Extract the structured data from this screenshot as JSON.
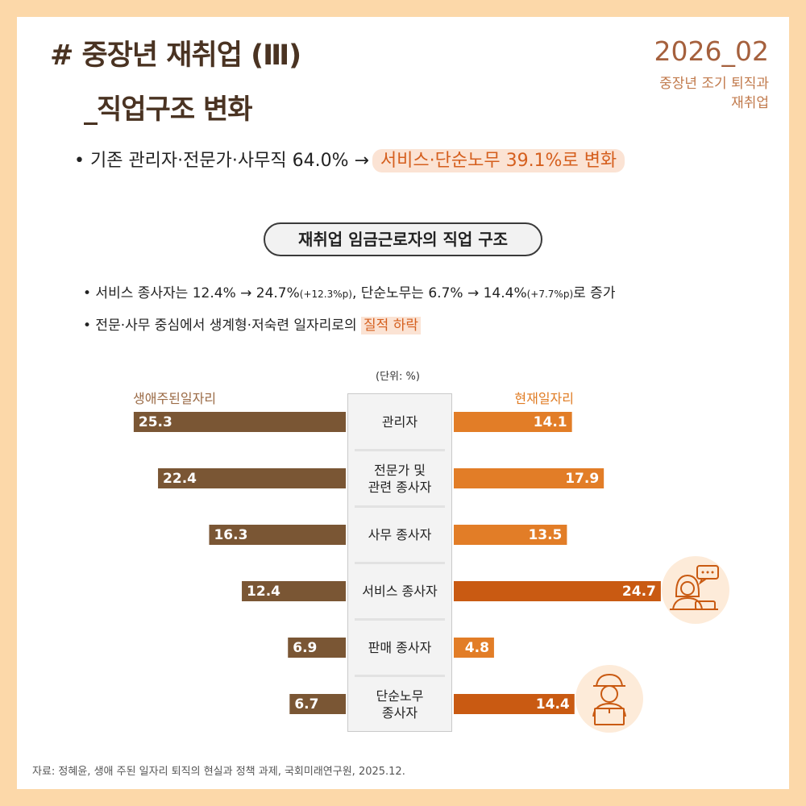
{
  "header": {
    "title_line1": "# 중장년 재취업 (Ⅲ)",
    "title_line2": "_직업구조 변화",
    "date": "2026_02",
    "tag_line1": "중장년 조기 퇴직과",
    "tag_line2": "재취업"
  },
  "lead": {
    "prefix": "• 기존 관리자·전문가·사무직 64.0% →",
    "highlight": "서비스·단순노무 39.1%로 변화"
  },
  "section_title": "재취업 임금근로자의 직업 구조",
  "bullets": {
    "b1_main": "• 서비스 종사자는 12.4% → 24.7%",
    "b1_small1": "(+12.3%p)",
    "b1_mid": ", 단순노무는 6.7% → 14.4%",
    "b1_small2": "(+7.7%p)",
    "b1_end": "로 증가",
    "b2_main": "• 전문·사무 중심에서 생계형·저숙련 일자리로의",
    "b2_highlight": "질적 하락"
  },
  "chart_data": {
    "type": "bar",
    "unit_label": "(단위: %)",
    "categories": [
      "관리자",
      "전문가 및\n관련 종사자",
      "사무 종사자",
      "서비스 종사자",
      "판매 종사자",
      "단순노무\n종사자"
    ],
    "series": [
      {
        "name": "생애주된일자리",
        "values": [
          25.3,
          22.4,
          16.3,
          12.4,
          6.9,
          6.7
        ]
      },
      {
        "name": "현재일자리",
        "values": [
          14.1,
          17.9,
          13.5,
          24.7,
          4.8,
          14.4
        ]
      }
    ],
    "colors": {
      "left": "#7a5634",
      "right": "#e27d27",
      "right_emphasis": "#c95a12"
    },
    "emphasized_categories": [
      3,
      5
    ]
  },
  "icons": [
    "call-center-agent-icon",
    "delivery-worker-icon"
  ],
  "source": "자료: 정혜윤, 생애 주된 일자리 퇴직의 현실과 정책 과제, 국회미래연구원, 2025.12."
}
